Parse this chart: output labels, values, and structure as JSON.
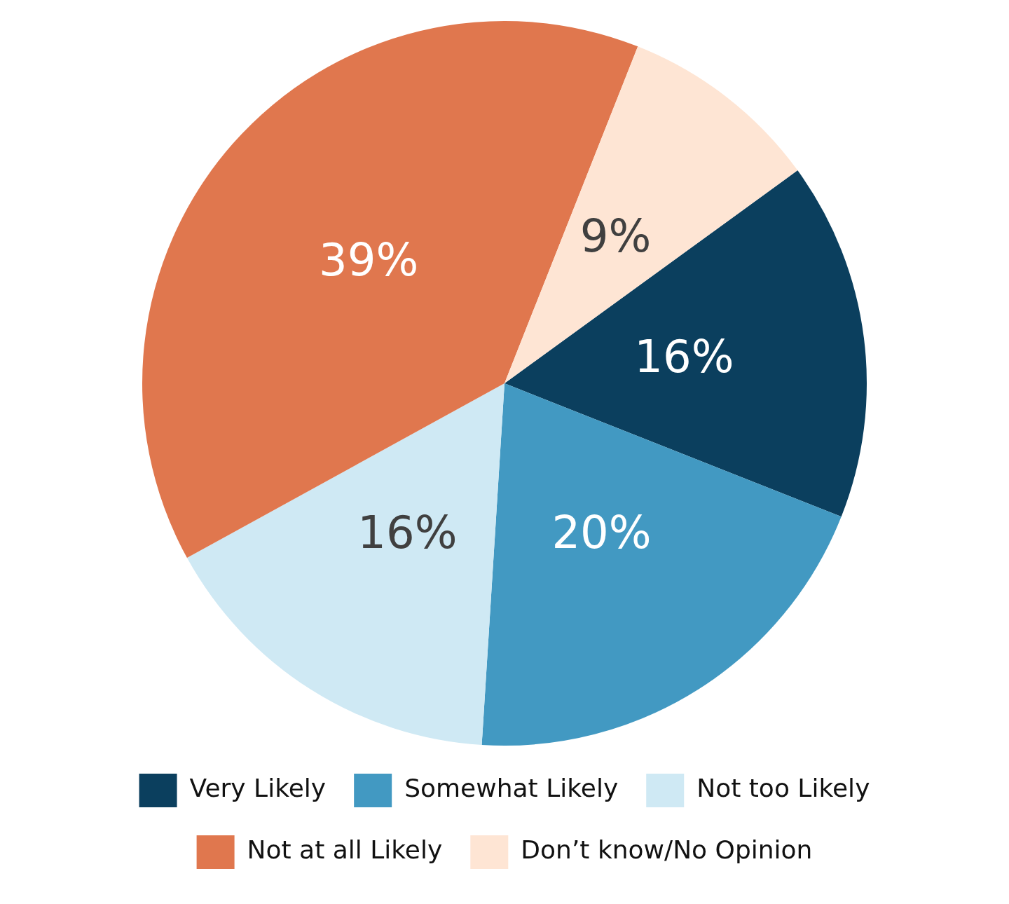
{
  "chart_data": {
    "type": "pie",
    "categories": [
      "Very Likely",
      "Somewhat Likely",
      "Not too Likely",
      "Not at all Likely",
      "Don’t know/No Opinion"
    ],
    "values": [
      16,
      20,
      16,
      39,
      9
    ],
    "colors": [
      "#0b3f5e",
      "#4299c2",
      "#cfe9f4",
      "#e0774e",
      "#fee5d4"
    ],
    "value_labels": [
      "16%",
      "20%",
      "16%",
      "39%",
      "9%"
    ],
    "legend": "bottom"
  }
}
